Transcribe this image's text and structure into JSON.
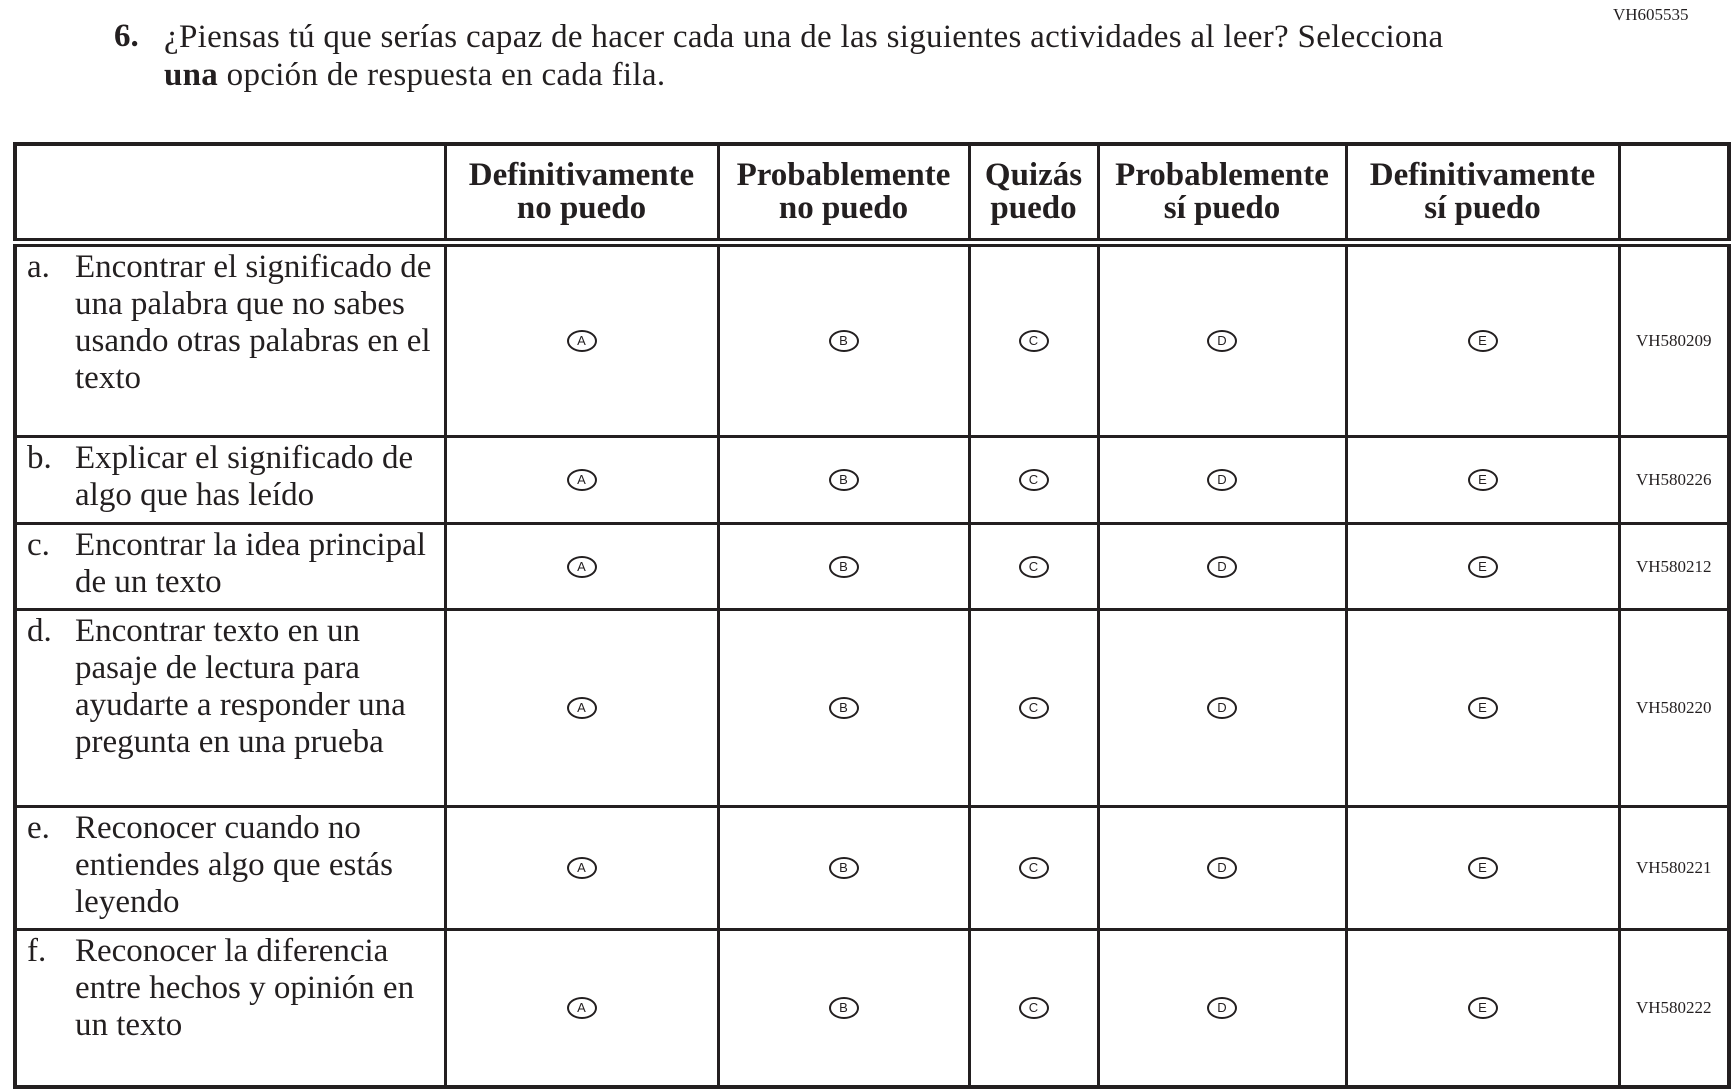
{
  "item_id": "VH605535",
  "question": {
    "number": "6.",
    "text_before": "¿Piensas tú que serías capaz de hacer cada una de las siguientes actividades al leer? Selecciona ",
    "text_bold": "una",
    "text_after": " opción de respuesta en cada fila."
  },
  "columns": [
    {
      "line1": "Definitivamente",
      "line2": "no puedo"
    },
    {
      "line1": "Probablemente",
      "line2": "no puedo"
    },
    {
      "line1": "Quizás",
      "line2": "puedo"
    },
    {
      "line1": "Probablemente",
      "line2": "sí puedo"
    },
    {
      "line1": "Definitivamente",
      "line2": "sí puedo"
    }
  ],
  "options": [
    "A",
    "B",
    "C",
    "D",
    "E"
  ],
  "rows": [
    {
      "letter": "a.",
      "text": "Encontrar el significado de una palabra que no sabes usando otras palabras en el texto",
      "code": "VH580209"
    },
    {
      "letter": "b.",
      "text": "Explicar el significado de algo que has leído",
      "code": "VH580226"
    },
    {
      "letter": "c.",
      "text": "Encontrar la idea principal de un texto",
      "code": "VH580212"
    },
    {
      "letter": "d.",
      "text": "Encontrar texto en un pasaje de lectura para ayudarte a responder una pregunta en una prueba",
      "code": "VH580220"
    },
    {
      "letter": "e.",
      "text": "Reconocer cuando no entiendes algo que estás leyendo",
      "code": "VH580221"
    },
    {
      "letter": "f.",
      "text": "Reconocer la diferencia entre hechos y opinión en un texto",
      "code": "VH580222"
    }
  ]
}
